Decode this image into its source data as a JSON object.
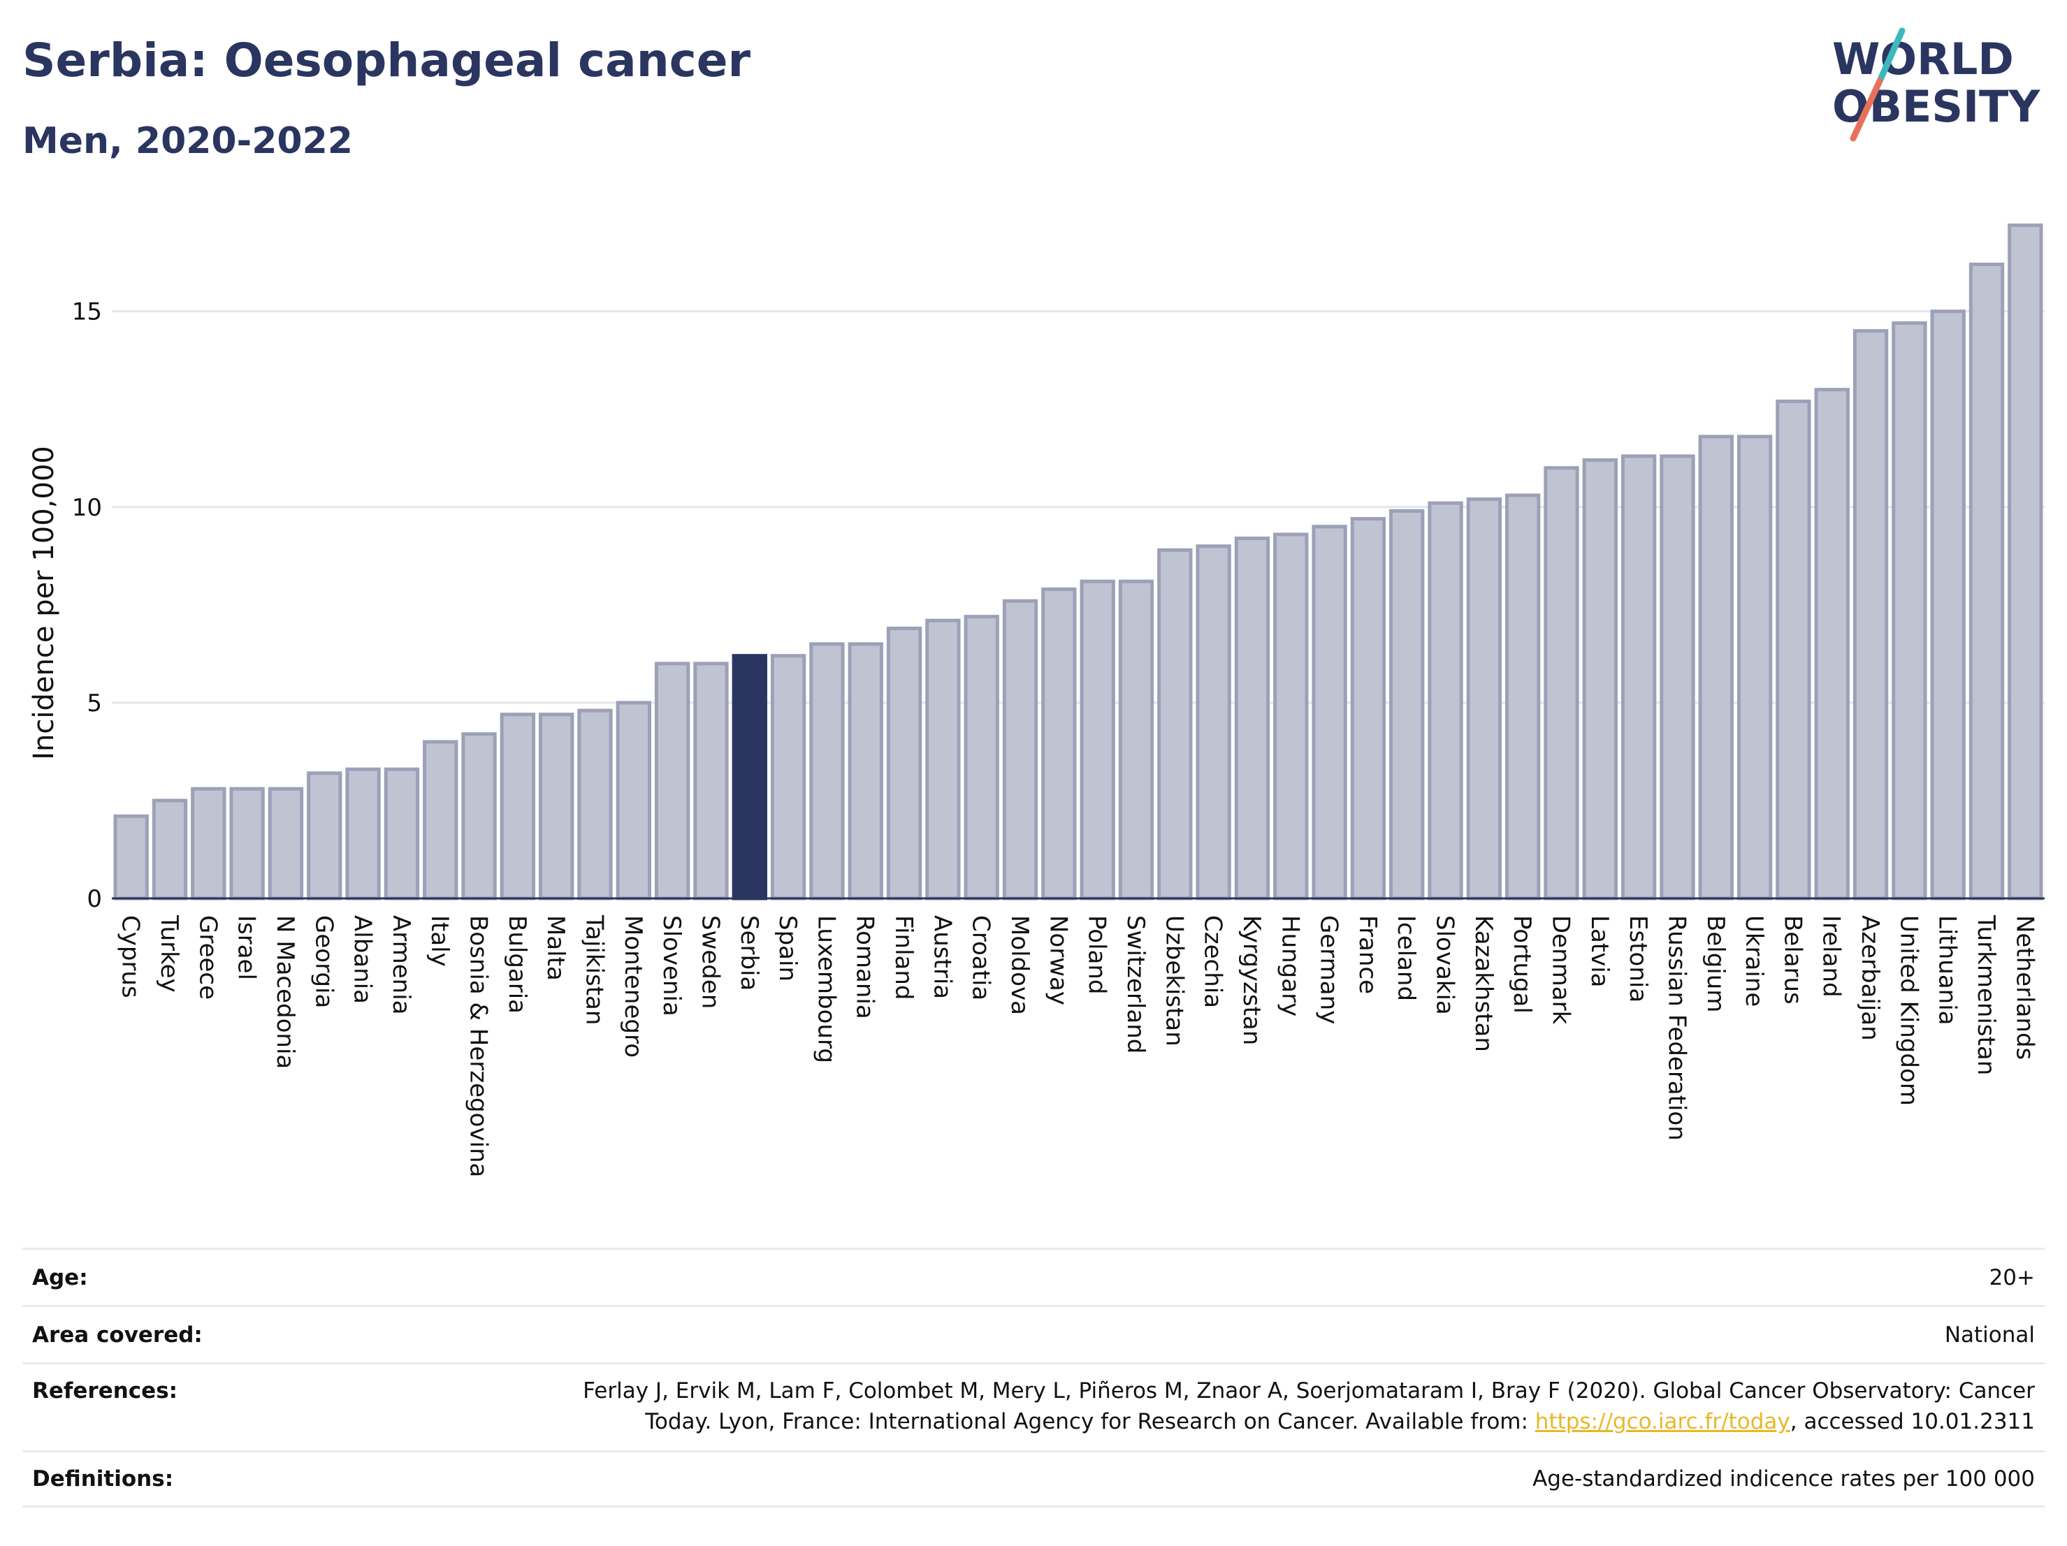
{
  "header": {
    "title": "Serbia: Oesophageal cancer",
    "subtitle": "Men, 2020-2022"
  },
  "logo": {
    "line1": "WORLD",
    "line2": "OBESITY",
    "colors": {
      "text": "#2a3560",
      "slash_top": "#3fb8bd",
      "slash_bottom": "#e8705a"
    }
  },
  "chart_data": {
    "type": "bar",
    "ylabel": "Incidence per 100,000",
    "xlabel": "",
    "ylim": [
      0,
      17.6
    ],
    "yticks": [
      0,
      5,
      10,
      15
    ],
    "grid": true,
    "highlight": "Serbia",
    "colors": {
      "bar": "#c0c3d2",
      "bar_edge": "#9ca1b8",
      "highlight": "#2a3560"
    },
    "categories": [
      "Cyprus",
      "Turkey",
      "Greece",
      "Israel",
      "N Macedonia",
      "Georgia",
      "Albania",
      "Armenia",
      "Italy",
      "Bosnia & Herzegovina",
      "Bulgaria",
      "Malta",
      "Tajikistan",
      "Montenegro",
      "Slovenia",
      "Sweden",
      "Serbia",
      "Spain",
      "Luxembourg",
      "Romania",
      "Finland",
      "Austria",
      "Croatia",
      "Moldova",
      "Norway",
      "Poland",
      "Switzerland",
      "Uzbekistan",
      "Czechia",
      "Kyrgyzstan",
      "Hungary",
      "Germany",
      "France",
      "Iceland",
      "Slovakia",
      "Kazakhstan",
      "Portugal",
      "Denmark",
      "Latvia",
      "Estonia",
      "Russian Federation",
      "Belgium",
      "Ukraine",
      "Belarus",
      "Ireland",
      "Azerbaijan",
      "United Kingdom",
      "Lithuania",
      "Turkmenistan",
      "Netherlands"
    ],
    "values": [
      2.1,
      2.5,
      2.8,
      2.8,
      2.8,
      3.2,
      3.3,
      3.3,
      4.0,
      4.2,
      4.7,
      4.7,
      4.8,
      5.0,
      6.0,
      6.0,
      6.2,
      6.2,
      6.5,
      6.5,
      6.9,
      7.1,
      7.2,
      7.6,
      7.9,
      8.1,
      8.1,
      8.9,
      9.0,
      9.2,
      9.3,
      9.5,
      9.7,
      9.9,
      10.1,
      10.2,
      10.3,
      11.0,
      11.2,
      11.3,
      11.3,
      11.8,
      11.8,
      12.7,
      13.0,
      14.5,
      14.7,
      15.0,
      16.2,
      17.2
    ]
  },
  "meta": {
    "age_label": "Age:",
    "age_value": "20+",
    "area_label": "Area covered:",
    "area_value": "National",
    "references_label": "References:",
    "references_line1": "Ferlay J, Ervik M, Lam F, Colombet M, Mery L, Piñeros M, Znaor A, Soerjomataram I, Bray F (2020). Global Cancer Observatory: Cancer",
    "references_line2_pre": "Today. Lyon, France: International Agency for Research on Cancer. Available from: ",
    "references_link": "https://gco.iarc.fr/today",
    "references_line2_post": ", accessed 10.01.2311",
    "definitions_label": "Definitions:",
    "definitions_value": "Age-standardized indicence rates per 100 000"
  }
}
